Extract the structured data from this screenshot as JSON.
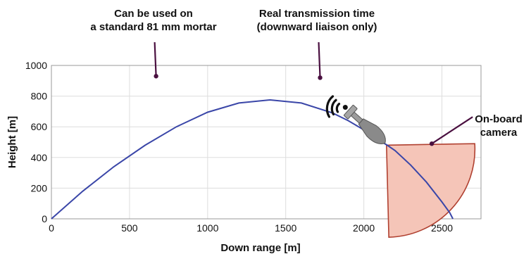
{
  "chart_data": {
    "type": "line",
    "title": "",
    "xlabel": "Down range [m]",
    "ylabel": "Height [m]",
    "xlim": [
      0,
      2750
    ],
    "ylim": [
      0,
      1000
    ],
    "xticks": [
      0,
      500,
      1000,
      1500,
      2000,
      2500
    ],
    "yticks": [
      0,
      200,
      400,
      600,
      800,
      1000
    ],
    "grid": true,
    "series": [
      {
        "color": "#3a46a8",
        "x": [
          0,
          200,
          400,
          600,
          800,
          1000,
          1200,
          1400,
          1600,
          1800,
          1900,
          2000,
          2100,
          2150,
          2200,
          2300,
          2400,
          2500,
          2550,
          2570
        ],
        "y": [
          0,
          180,
          340,
          480,
          600,
          695,
          755,
          775,
          755,
          690,
          640,
          580,
          510,
          480,
          445,
          350,
          240,
          110,
          40,
          0
        ]
      }
    ],
    "camera_field_of_view": {
      "fill": "#f5c5b8",
      "stroke": "#b04030",
      "apex": [
        2145,
        480
      ],
      "edge_top": [
        2710,
        490
      ],
      "edge_bottom": [
        2160,
        -120
      ]
    },
    "annotations": [
      {
        "id": "mortar",
        "lines": [
          "Can be used on",
          "a standard 81 mm mortar"
        ],
        "point": [
          670,
          930
        ]
      },
      {
        "id": "transmission",
        "lines": [
          "Real transmission time",
          "(downward liaison only)"
        ],
        "point": [
          1720,
          920
        ]
      },
      {
        "id": "camera",
        "lines": [
          "On-board",
          "camera"
        ],
        "point": [
          2435,
          490
        ]
      }
    ],
    "colors": {
      "trajectory": "#3a46a8",
      "grid": "#dddddd",
      "axes": "#999999",
      "annotation_pointer": "#4a1040",
      "signal_arcs": "#111111",
      "projectile": "#8a8a8a"
    }
  }
}
